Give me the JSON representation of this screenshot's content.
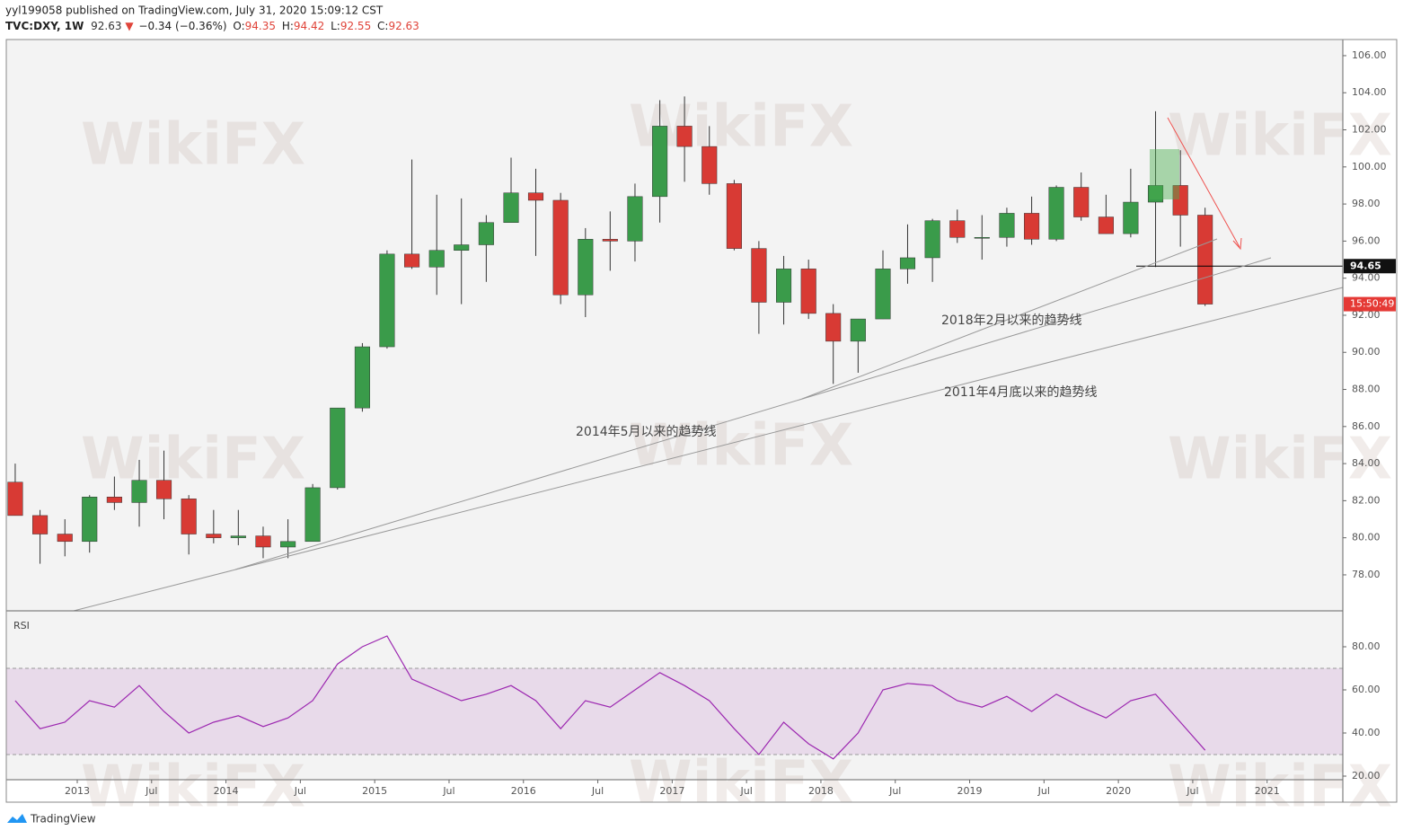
{
  "header": {
    "published": "yyl199058 published on TradingView.com, July 31, 2020 15:09:12 CST",
    "symbol": "TVC:DXY, 1W",
    "price": "92.63",
    "arrow": "▼",
    "change": "−0.34 (−0.36%)",
    "ohlc": [
      {
        "label": "O:",
        "value": "94.35"
      },
      {
        "label": "H:",
        "value": "94.42"
      },
      {
        "label": "L:",
        "value": "92.55"
      },
      {
        "label": "C:",
        "value": "92.63"
      }
    ]
  },
  "annotations": [
    "2018年2月以来的趋势线",
    "2011年4月底以来的趋势线",
    "2014年5月以来的趋势线"
  ],
  "watermark": "WikiFX",
  "footer": "TradingView",
  "chart_data": [
    {
      "type": "candlestick",
      "up_color": "#3a9b4a",
      "down_color": "#d83a34",
      "xlim": [
        2012.523,
        2021.509
      ],
      "ylim": [
        76.06,
        106.87
      ],
      "yticks": [
        {
          "value": 78,
          "label": "78.00"
        },
        {
          "value": 80,
          "label": "80.00"
        },
        {
          "value": 82,
          "label": "82.00"
        },
        {
          "value": 84,
          "label": "84.00"
        },
        {
          "value": 86,
          "label": "86.00"
        },
        {
          "value": 88,
          "label": "88.00"
        },
        {
          "value": 90,
          "label": "90.00"
        },
        {
          "value": 92,
          "label": "92.00"
        },
        {
          "value": 94,
          "label": "94.00"
        },
        {
          "value": 96,
          "label": "96.00"
        },
        {
          "value": 98,
          "label": "98.00"
        },
        {
          "value": 100,
          "label": "100.00"
        },
        {
          "value": 102,
          "label": "102.00"
        },
        {
          "value": 104,
          "label": "104.00"
        },
        {
          "value": 106,
          "label": "106.00"
        }
      ],
      "level": 94.65,
      "countdown": "15:50:49",
      "x": [
        2012.583,
        2012.75,
        2012.917,
        2013.083,
        2013.25,
        2013.417,
        2013.583,
        2013.75,
        2013.917,
        2014.083,
        2014.25,
        2014.417,
        2014.583,
        2014.75,
        2014.917,
        2015.083,
        2015.25,
        2015.417,
        2015.583,
        2015.75,
        2015.917,
        2016.083,
        2016.25,
        2016.417,
        2016.583,
        2016.75,
        2016.917,
        2017.083,
        2017.25,
        2017.417,
        2017.583,
        2017.75,
        2017.917,
        2018.083,
        2018.25,
        2018.417,
        2018.583,
        2018.75,
        2018.917,
        2019.083,
        2019.25,
        2019.417,
        2019.583,
        2019.75,
        2019.917,
        2020.083,
        2020.25,
        2020.417,
        2020.583
      ],
      "open": [
        83.0,
        81.2,
        80.2,
        79.8,
        82.2,
        81.9,
        83.1,
        82.1,
        80.2,
        80.0,
        80.1,
        79.5,
        79.8,
        82.7,
        87.0,
        90.3,
        95.3,
        94.6,
        95.5,
        95.8,
        97.0,
        98.6,
        98.2,
        93.1,
        96.1,
        96.0,
        98.4,
        102.2,
        101.1,
        99.1,
        95.6,
        92.7,
        94.5,
        92.1,
        90.6,
        91.8,
        94.5,
        95.1,
        97.1,
        96.2,
        96.2,
        97.5,
        96.1,
        98.9,
        97.3,
        96.4,
        98.1,
        99.0,
        97.4
      ],
      "high": [
        84.0,
        81.5,
        81.0,
        82.3,
        83.3,
        84.2,
        84.7,
        82.3,
        81.5,
        81.5,
        80.6,
        81.0,
        82.9,
        87.0,
        90.5,
        95.5,
        100.4,
        98.5,
        98.3,
        97.4,
        100.5,
        99.9,
        98.6,
        96.7,
        97.6,
        99.1,
        103.6,
        103.8,
        102.2,
        99.3,
        96.0,
        95.2,
        95.0,
        92.6,
        91.8,
        95.5,
        96.9,
        97.2,
        97.7,
        97.4,
        97.8,
        98.4,
        99.0,
        99.7,
        98.5,
        99.9,
        103.0,
        100.9,
        97.8
      ],
      "low": [
        81.2,
        78.6,
        79.0,
        79.2,
        81.5,
        80.6,
        81.0,
        79.1,
        79.7,
        79.6,
        78.9,
        78.9,
        79.8,
        82.6,
        86.8,
        90.2,
        94.5,
        93.1,
        92.6,
        93.8,
        97.0,
        95.2,
        92.6,
        91.9,
        94.4,
        94.9,
        97.0,
        99.2,
        98.5,
        95.5,
        91.0,
        91.5,
        91.8,
        88.3,
        88.9,
        91.8,
        93.7,
        93.8,
        95.9,
        95.0,
        95.7,
        95.8,
        96.0,
        97.1,
        96.4,
        96.2,
        94.6,
        95.7,
        92.5
      ],
      "close": [
        81.2,
        80.2,
        79.8,
        82.2,
        81.9,
        83.1,
        82.1,
        80.2,
        80.0,
        80.1,
        79.5,
        79.8,
        82.7,
        87.0,
        90.3,
        95.3,
        94.6,
        95.5,
        95.8,
        97.0,
        98.6,
        98.2,
        93.1,
        96.1,
        96.0,
        98.4,
        102.2,
        101.1,
        99.1,
        95.6,
        92.7,
        94.5,
        92.1,
        90.6,
        91.8,
        94.5,
        95.1,
        97.1,
        96.2,
        96.2,
        97.5,
        96.1,
        98.9,
        97.3,
        96.4,
        98.1,
        99.0,
        97.4,
        92.6
      ]
    },
    {
      "type": "line",
      "title": "RSI",
      "color": "#9c27b0",
      "band": [
        30,
        70
      ],
      "xlim": [
        2012.523,
        2021.509
      ],
      "ylim": [
        18.33,
        96.67
      ],
      "yticks": [
        {
          "value": 20,
          "label": "20.00"
        },
        {
          "value": 40,
          "label": "40.00"
        },
        {
          "value": 60,
          "label": "60.00"
        },
        {
          "value": 80,
          "label": "80.00"
        }
      ],
      "xticks": [
        2013,
        {
          "value": 2013.5,
          "label": "Jul"
        },
        2014,
        {
          "value": 2014.5,
          "label": "Jul"
        },
        2015,
        {
          "value": 2015.5,
          "label": "Jul"
        },
        2016,
        {
          "value": 2016.5,
          "label": "Jul"
        },
        2017,
        {
          "value": 2017.5,
          "label": "Jul"
        },
        2018,
        {
          "value": 2018.5,
          "label": "Jul"
        },
        2019,
        {
          "value": 2019.5,
          "label": "Jul"
        },
        2020,
        {
          "value": 2020.5,
          "label": "Jul"
        },
        2021
      ],
      "x": [
        2012.583,
        2012.75,
        2012.917,
        2013.083,
        2013.25,
        2013.417,
        2013.583,
        2013.75,
        2013.917,
        2014.083,
        2014.25,
        2014.417,
        2014.583,
        2014.75,
        2014.917,
        2015.083,
        2015.25,
        2015.417,
        2015.583,
        2015.75,
        2015.917,
        2016.083,
        2016.25,
        2016.417,
        2016.583,
        2016.75,
        2016.917,
        2017.083,
        2017.25,
        2017.417,
        2017.583,
        2017.75,
        2017.917,
        2018.083,
        2018.25,
        2018.417,
        2018.583,
        2018.75,
        2018.917,
        2019.083,
        2019.25,
        2019.417,
        2019.583,
        2019.75,
        2019.917,
        2020.083,
        2020.25,
        2020.417,
        2020.583
      ],
      "values": [
        55,
        42,
        45,
        55,
        52,
        62,
        50,
        40,
        45,
        48,
        43,
        47,
        55,
        72,
        80,
        85,
        65,
        60,
        55,
        58,
        62,
        55,
        42,
        55,
        52,
        60,
        68,
        62,
        55,
        42,
        30,
        45,
        35,
        28,
        40,
        60,
        63,
        62,
        55,
        52,
        57,
        50,
        58,
        52,
        47,
        55,
        58,
        45,
        32
      ]
    }
  ]
}
